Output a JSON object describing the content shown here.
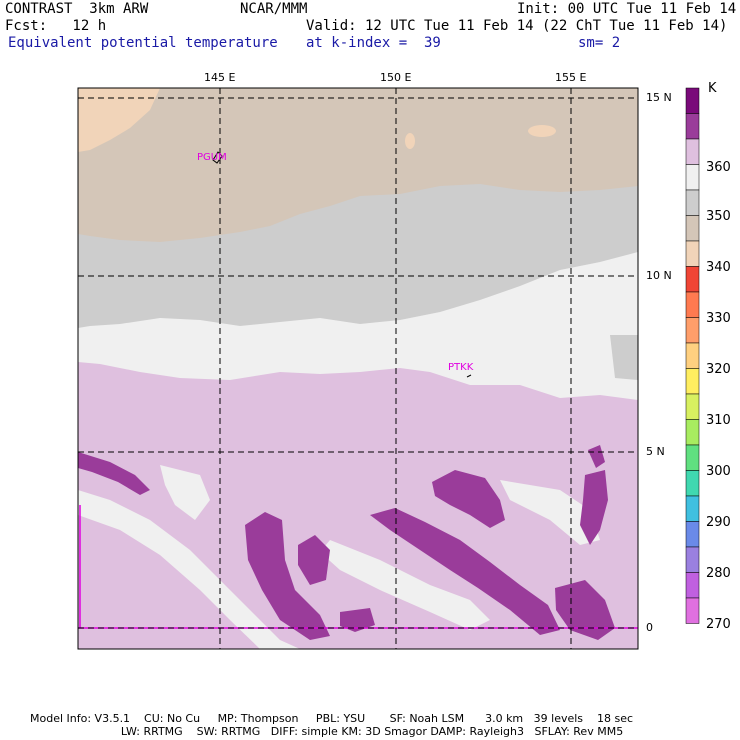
{
  "header": {
    "model": "CONTRAST  3km ARW",
    "org": "NCAR/MMM",
    "init": "Init: 00 UTC Tue 11 Feb 14",
    "fcst": "Fcst:   12 h",
    "valid": "Valid: 12 UTC Tue 11 Feb 14 (22 ChT Tue 11 Feb 14)",
    "field": "Equivalent potential temperature",
    "level": "at k-index =  39",
    "smooth": "sm= 2"
  },
  "map": {
    "lon_labels": [
      "145 E",
      "150 E",
      "155 E"
    ],
    "lat_labels": [
      "15 N",
      "10 N",
      "5 N",
      "0"
    ],
    "stations": [
      "PGUM",
      "PTKK"
    ]
  },
  "colorbar": {
    "unit": "K",
    "labels": [
      "360",
      "350",
      "340",
      "330",
      "320",
      "310",
      "300",
      "290",
      "280",
      "270"
    ],
    "colors": [
      "#7a0a7a",
      "#9a3c9a",
      "#dfc0df",
      "#f0f0f0",
      "#cdcdcd",
      "#d4c6b8",
      "#f1d4b9",
      "#f04535",
      "#ff7a50",
      "#ff9e6a",
      "#ffd080",
      "#ffee60",
      "#d8f060",
      "#a8ec60",
      "#60e080",
      "#40d8b0",
      "#40c0e0",
      "#6a8ae8",
      "#9a80e0",
      "#c060e0",
      "#e070e0"
    ]
  },
  "footer": {
    "line1": "Model Info: V3.5.1    CU: No Cu     MP: Thompson     PBL: YSU       SF: Noah LSM      3.0 km   39 levels    18 sec",
    "line2": "                          LW: RRTMG    SW: RRTMG   DIFF: simple KM: 3D Smagor DAMP: Rayleigh3   SFLAY: Rev MM5"
  }
}
